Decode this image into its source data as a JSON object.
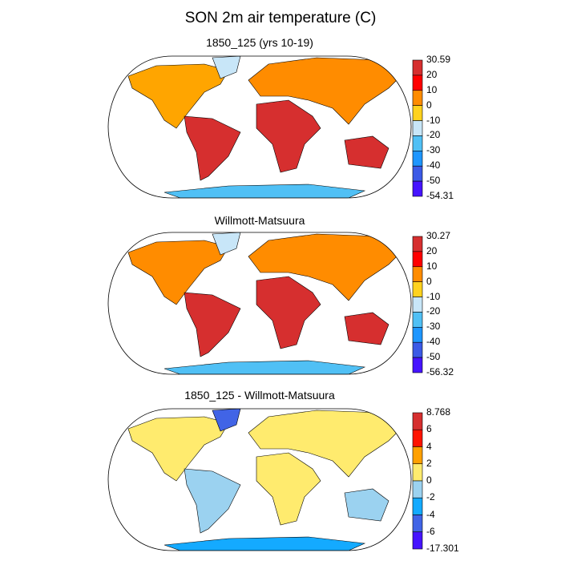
{
  "title": "SON 2m air temperature (C)",
  "panels": [
    {
      "title": "1850_125 (yrs 10-19)",
      "colorbar": {
        "labels": [
          "30.59",
          "20",
          "10",
          "0",
          "-10",
          "-20",
          "-30",
          "-40",
          "-50",
          "-54.31"
        ],
        "colors": [
          "#d62f2f",
          "#ff0000",
          "#ff8c00",
          "#ffd21e",
          "#c8e6f8",
          "#50c0f5",
          "#1e96ff",
          "#3c5ae6",
          "#4614ff"
        ]
      },
      "region_colors": {
        "north_america": "#ffa500",
        "greenland": "#c8e6f8",
        "south_america": "#d62f2f",
        "africa": "#d62f2f",
        "eurasia": "#ff8c00",
        "australia": "#d62f2f",
        "antarctica": "#50c0f5"
      }
    },
    {
      "title": "Willmott-Matsuura",
      "colorbar": {
        "labels": [
          "30.27",
          "20",
          "10",
          "0",
          "-10",
          "-20",
          "-30",
          "-40",
          "-50",
          "-56.32"
        ],
        "colors": [
          "#d62f2f",
          "#ff0000",
          "#ff8c00",
          "#ffd21e",
          "#c8e6f8",
          "#50c0f5",
          "#1e96ff",
          "#3c5ae6",
          "#4614ff"
        ]
      },
      "region_colors": {
        "north_america": "#ff8c00",
        "greenland": "#c8e6f8",
        "south_america": "#d62f2f",
        "africa": "#d62f2f",
        "eurasia": "#ff8c00",
        "australia": "#d62f2f",
        "antarctica": "#50c0f5"
      }
    },
    {
      "title": "1850_125 - Willmott-Matsuura",
      "colorbar": {
        "labels": [
          "8.768",
          "6",
          "4",
          "2",
          "0",
          "-2",
          "-4",
          "-6",
          "-17.301"
        ],
        "colors": [
          "#d62f2f",
          "#ff1400",
          "#ffa000",
          "#ffeb6e",
          "#9bd2f0",
          "#14aaff",
          "#4164e6",
          "#4614ff"
        ]
      },
      "region_colors": {
        "north_america": "#ffeb6e",
        "greenland": "#4164e6",
        "south_america": "#9bd2f0",
        "africa": "#ffeb6e",
        "eurasia": "#ffeb6e",
        "australia": "#9bd2f0",
        "antarctica": "#14aaff"
      }
    }
  ]
}
